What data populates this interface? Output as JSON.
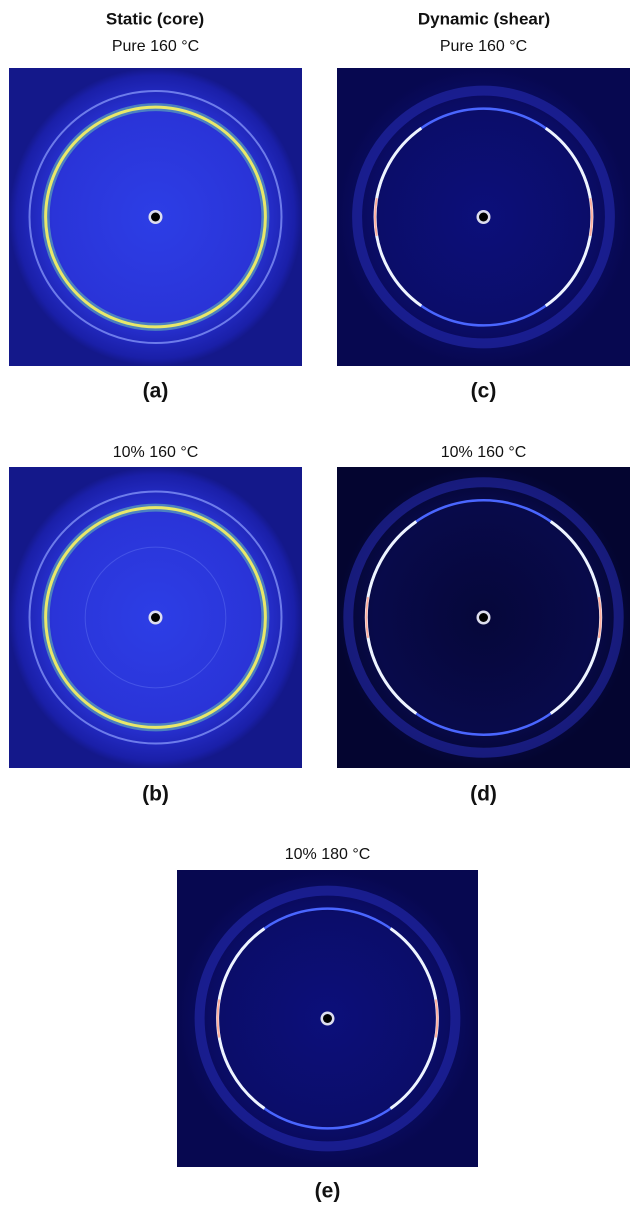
{
  "headers": [
    "Static (core)",
    "Dynamic (shear)"
  ],
  "panels": [
    {
      "condition": "Pure 160 °C",
      "label": "(a)"
    },
    {
      "condition": "Pure 160 °C",
      "label": "(c)"
    },
    {
      "condition": "10% 160 °C",
      "label": "(b)"
    },
    {
      "condition": "10% 160 °C",
      "label": "(d)"
    },
    {
      "condition": "10% 180 °C",
      "label": "(e)"
    }
  ]
}
